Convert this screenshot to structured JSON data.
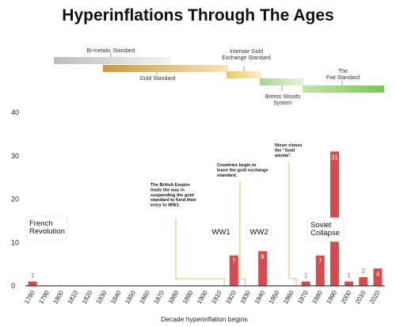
{
  "title": "Hyperinflations Through The Ages",
  "standards": [
    {
      "label": "Bi-metalic Standard",
      "color_from": "#bdbdbd",
      "color_to": "#f4f4f4"
    },
    {
      "label": "Gold Standard",
      "color_from": "#c89a45",
      "color_to": "#f6e5bd"
    },
    {
      "label": "Interwar Gold\nExchange Standard",
      "color_from": "#e8c66e",
      "color_to": "#fbeec8"
    },
    {
      "label": "Breton Woods\nSystem",
      "color_from": "#a9d38a",
      "color_to": "#e9f5df"
    },
    {
      "label": "The\nFiat Standard",
      "color_from": "#c3e3a8",
      "color_to": "#7cc55a"
    }
  ],
  "events": [
    {
      "label": "French\nRevolution"
    },
    {
      "label": "WW1"
    },
    {
      "label": "WW2"
    },
    {
      "label": "Soviet\nCollapse"
    }
  ],
  "annotations": [
    {
      "text": "The British Empire\nleads the way in\nsuspending the gold\nstandard to fund their\nentry to WW1."
    },
    {
      "text": "Countries begin to\nleave the gold exchange\nstandard."
    },
    {
      "text": "Nixon closes\nthe \"Gold\nwindw\"."
    }
  ],
  "colors": {
    "bar": "#d64a4f",
    "value_label": "#d64a4f",
    "annotation_line": "#e4c15a"
  },
  "chart_data": {
    "type": "bar",
    "xlabel": "Decade hyperinflation begins",
    "ylabel": "",
    "ylim": [
      0,
      40
    ],
    "yticks": [
      0,
      10,
      20,
      30,
      40
    ],
    "grid": false,
    "categories": [
      "1780",
      "1790",
      "1800",
      "1810",
      "1820",
      "1830",
      "1840",
      "1850",
      "1860",
      "1870",
      "1880",
      "1890",
      "1900",
      "1910",
      "1920",
      "1930",
      "1940",
      "1950",
      "1960",
      "1970",
      "1980",
      "1990",
      "2000",
      "2010",
      "2020"
    ],
    "values": [
      1,
      0,
      0,
      0,
      0,
      0,
      0,
      0,
      0,
      0,
      0,
      0,
      0,
      0,
      7,
      0,
      8,
      0,
      0,
      1,
      7,
      31,
      1,
      2,
      4
    ],
    "value_labels": [
      "1",
      "",
      "",
      "",
      "",
      "",
      "",
      "",
      "",
      "",
      "",
      "",
      "",
      "",
      "7",
      "",
      "8",
      "",
      "",
      "1",
      "7",
      "31",
      "1",
      "2",
      "4"
    ]
  }
}
